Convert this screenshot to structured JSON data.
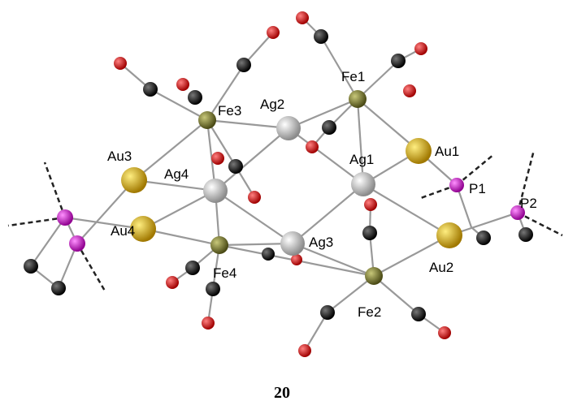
{
  "atoms": [
    {
      "label": "Fe1"
    },
    {
      "label": "Ag2"
    },
    {
      "label": "Fe3"
    },
    {
      "label": "Au3"
    },
    {
      "label": "Ag4"
    },
    {
      "label": "Ag1"
    },
    {
      "label": "Au1"
    },
    {
      "label": "P1"
    },
    {
      "label": "P2"
    },
    {
      "label": "Au4"
    },
    {
      "label": "Ag3"
    },
    {
      "label": "Fe4"
    },
    {
      "label": "Au2"
    },
    {
      "label": "Fe2"
    }
  ],
  "caption": "20"
}
